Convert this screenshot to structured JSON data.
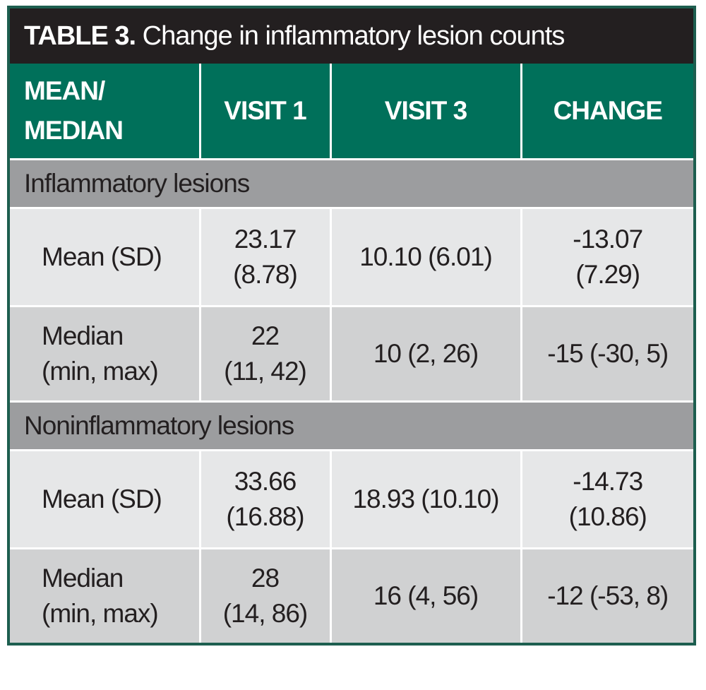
{
  "title": {
    "label": "TABLE 3.",
    "text": "Change in inflammatory lesion counts"
  },
  "table": {
    "header": [
      [
        "MEAN/",
        "MEDIAN"
      ],
      [
        "VISIT 1"
      ],
      [
        "VISIT 3"
      ],
      [
        "CHANGE"
      ]
    ],
    "sections": [
      {
        "label": "Inflammatory lesions",
        "rows": [
          [
            [
              "Mean (SD)"
            ],
            [
              "23.17",
              "(8.78)"
            ],
            [
              "10.10 (6.01)"
            ],
            [
              "-13.07",
              "(7.29)"
            ]
          ],
          [
            [
              "Median",
              "(min, max)"
            ],
            [
              "22",
              "(11, 42)"
            ],
            [
              "10 (2, 26)"
            ],
            [
              "-15 (-30, 5)"
            ]
          ]
        ]
      },
      {
        "label": "Noninflammatory lesions",
        "rows": [
          [
            [
              "Mean (SD)"
            ],
            [
              "33.66",
              "(16.88)"
            ],
            [
              "18.93 (10.10)"
            ],
            [
              "-14.73",
              "(10.86)"
            ]
          ],
          [
            [
              "Median",
              "(min, max)"
            ],
            [
              "28",
              "(14, 86)"
            ],
            [
              "16 (4, 56)"
            ],
            [
              "-12 (-53, 8)"
            ]
          ]
        ]
      }
    ]
  }
}
